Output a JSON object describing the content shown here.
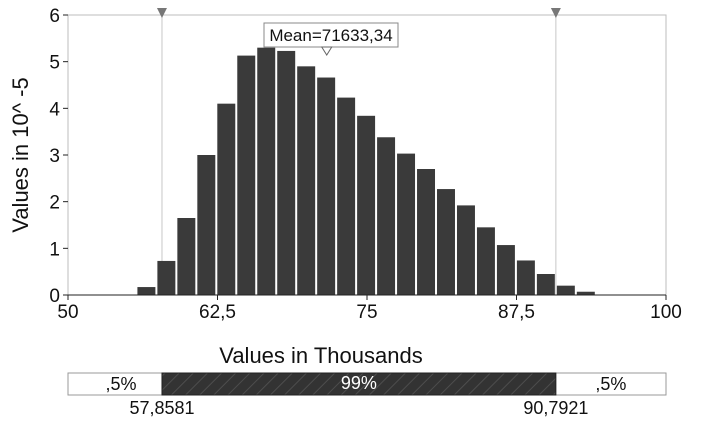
{
  "chart_data": {
    "type": "bar",
    "title": "",
    "ylabel": "Values in 10^ -5",
    "xlabel": "Values in Thousands",
    "xlim": [
      50,
      100
    ],
    "ylim": [
      0,
      6
    ],
    "x_ticks": [
      "50",
      "62,5",
      "75",
      "87,5",
      "100"
    ],
    "y_ticks": [
      "0",
      "1",
      "2",
      "3",
      "4",
      "5",
      "6"
    ],
    "bin_width": 1.67,
    "bin_starts": [
      55.72,
      57.39,
      59.06,
      60.73,
      62.4,
      64.07,
      65.74,
      67.41,
      69.08,
      70.75,
      72.42,
      74.09,
      75.76,
      77.43,
      79.1,
      80.77,
      82.44,
      84.11,
      85.78,
      87.45,
      89.12,
      90.79,
      92.46
    ],
    "values": [
      0.17,
      0.73,
      1.65,
      3.0,
      4.1,
      5.13,
      5.3,
      5.23,
      4.9,
      4.66,
      4.23,
      3.84,
      3.38,
      3.03,
      2.7,
      2.27,
      1.92,
      1.45,
      1.07,
      0.74,
      0.45,
      0.2,
      0.07
    ],
    "bar_color": "#3a3a3a",
    "mean_label": "Mean=71633,34",
    "mean_value": 71.63334,
    "markers": [
      57.8581,
      90.7921
    ],
    "range_bar": {
      "left_pct": ",5%",
      "middle_pct": "99%",
      "right_pct": ",5%",
      "left_value": "57,8581",
      "right_value": "90,7921"
    },
    "grid": false
  }
}
